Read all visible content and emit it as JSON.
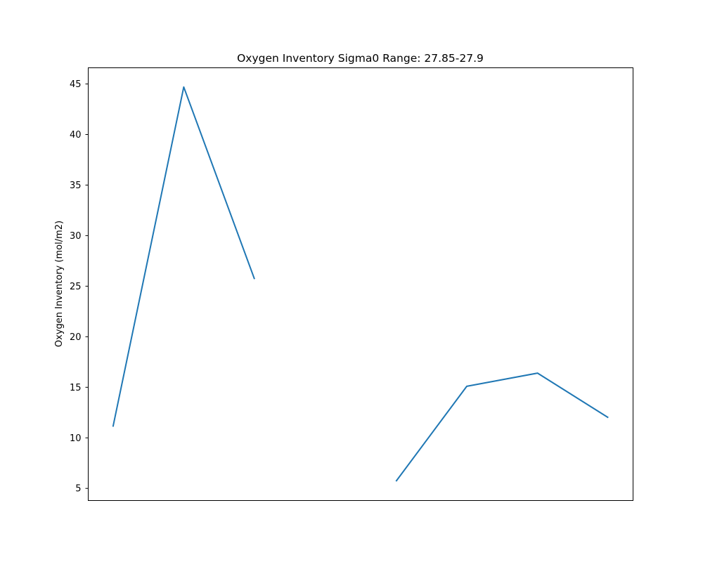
{
  "chart_data": {
    "type": "line",
    "title": "Oxygen Inventory Sigma0 Range: 27.85-27.9",
    "xlabel": "",
    "ylabel": "Oxygen Inventory (mol/m2)",
    "x_ticks_visible": false,
    "grid": false,
    "legend": "none",
    "ylim": [
      3.8,
      46.6
    ],
    "y_ticks": [
      5,
      10,
      15,
      20,
      25,
      30,
      35,
      40,
      45
    ],
    "x": [
      0,
      1,
      2,
      3,
      4,
      5,
      6,
      7
    ],
    "series": [
      {
        "values": [
          11.1,
          44.7,
          25.7,
          null,
          5.7,
          15.1,
          16.4,
          12.0
        ],
        "color": "#1f77b4"
      }
    ]
  }
}
